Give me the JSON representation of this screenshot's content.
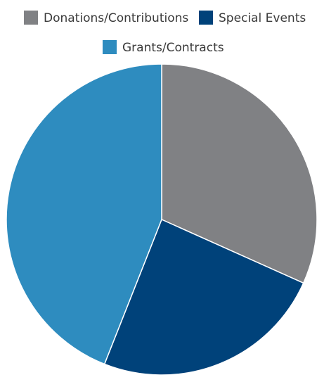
{
  "chart_data": {
    "type": "pie",
    "start_angle_deg": 0,
    "direction": "clockwise",
    "legend_position": "top",
    "series": [
      {
        "name": "Donations/Contributions",
        "value": 31.7,
        "color": "#808184"
      },
      {
        "name": "Special Events",
        "value": 24.3,
        "color": "#00427A"
      },
      {
        "name": "Grants/Contracts",
        "value": 44.0,
        "color": "#2E8CBF"
      }
    ]
  }
}
